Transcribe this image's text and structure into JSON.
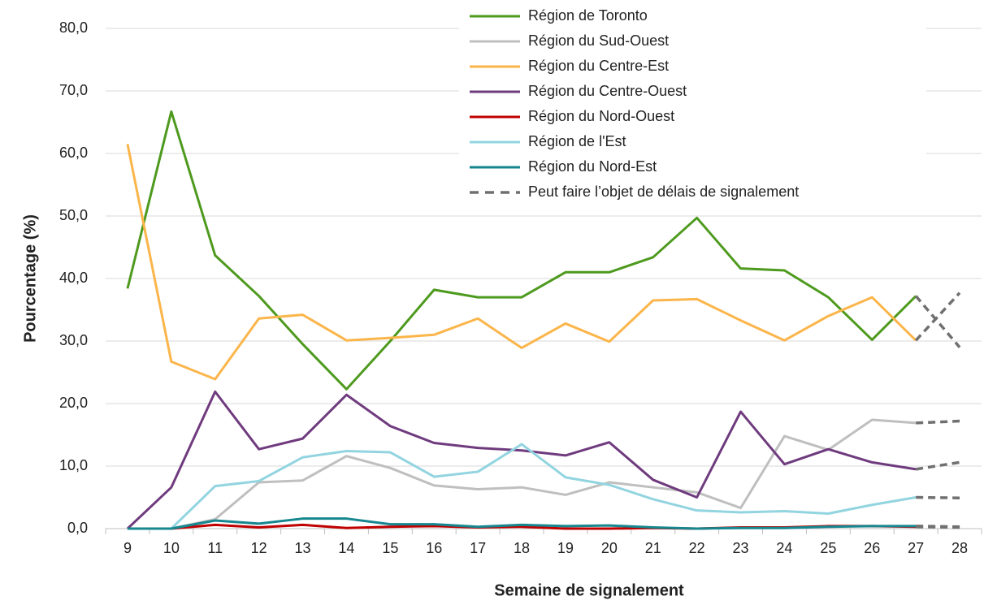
{
  "chart_data": {
    "type": "line",
    "x_label": "Semaine de signalement",
    "y_label": "Pourcentage (%)",
    "categories": [
      "9",
      "10",
      "11",
      "12",
      "13",
      "14",
      "15",
      "16",
      "17",
      "18",
      "19",
      "20",
      "21",
      "22",
      "23",
      "24",
      "25",
      "26",
      "27",
      "28"
    ],
    "ylim": [
      0,
      80
    ],
    "yticks": [
      {
        "value": 0,
        "label": "0,0"
      },
      {
        "value": 10,
        "label": "10,0"
      },
      {
        "value": 20,
        "label": "20,0"
      },
      {
        "value": 30,
        "label": "30,0"
      },
      {
        "value": 40,
        "label": "40,0"
      },
      {
        "value": 50,
        "label": "50,0"
      },
      {
        "value": 60,
        "label": "60,0"
      },
      {
        "value": 70,
        "label": "70,0"
      },
      {
        "value": 80,
        "label": "80,0"
      }
    ],
    "grid": true,
    "legend": "top",
    "dashed_from": 18,
    "dashed_color": "#707070",
    "dashed_label": "Peut faire l’objet de délais de signalement",
    "series": [
      {
        "name": "Région de Toronto",
        "color": "#4e9a1e",
        "values": [
          38.4,
          66.7,
          43.7,
          37.2,
          29.5,
          22.3,
          30.0,
          38.2,
          37.0,
          37.0,
          41.0,
          41.0,
          43.4,
          49.7,
          41.6,
          41.3,
          37.0,
          30.2,
          37.2,
          29.0
        ]
      },
      {
        "name": "Région du Sud-Ouest",
        "color": "#bfbfbf",
        "values": [
          0,
          0,
          1.5,
          7.4,
          7.7,
          11.6,
          9.7,
          6.9,
          6.3,
          6.6,
          5.4,
          7.4,
          6.6,
          5.8,
          3.3,
          14.8,
          12.6,
          17.4,
          16.9,
          17.2
        ]
      },
      {
        "name": "Région du Centre-Est",
        "color": "#fbb54a",
        "values": [
          61.5,
          26.7,
          23.9,
          33.6,
          34.2,
          30.1,
          30.5,
          31.0,
          33.6,
          28.9,
          32.8,
          29.9,
          36.5,
          36.7,
          33.3,
          30.1,
          34.0,
          37.0,
          30.1,
          37.7
        ]
      },
      {
        "name": "Région du Centre-Ouest",
        "color": "#6f3b7e",
        "values": [
          0,
          6.6,
          21.9,
          12.7,
          14.4,
          21.4,
          16.4,
          13.7,
          12.9,
          12.5,
          11.7,
          13.8,
          7.8,
          5.0,
          18.7,
          10.3,
          12.7,
          10.6,
          9.5,
          10.6
        ]
      },
      {
        "name": "Région du Nord-Ouest",
        "color": "#c00000",
        "values": [
          0,
          0,
          0.6,
          0.2,
          0.6,
          0.1,
          0.3,
          0.4,
          0.2,
          0.3,
          0,
          0,
          0.1,
          0,
          0.2,
          0.2,
          0.4,
          0.4,
          0.3,
          0.2
        ]
      },
      {
        "name": "Région de l'Est",
        "color": "#92d4e0",
        "values": [
          0,
          0,
          6.8,
          7.6,
          11.4,
          12.4,
          12.2,
          8.3,
          9.1,
          13.5,
          8.2,
          7.0,
          4.7,
          2.9,
          2.6,
          2.8,
          2.4,
          3.8,
          5.0,
          4.9
        ]
      },
      {
        "name": "Région du Nord-Est",
        "color": "#16868f",
        "values": [
          0,
          0,
          1.3,
          0.8,
          1.6,
          1.6,
          0.7,
          0.7,
          0.3,
          0.6,
          0.4,
          0.5,
          0.2,
          0,
          0.1,
          0.1,
          0.3,
          0.4,
          0.4,
          0.3
        ]
      }
    ]
  }
}
